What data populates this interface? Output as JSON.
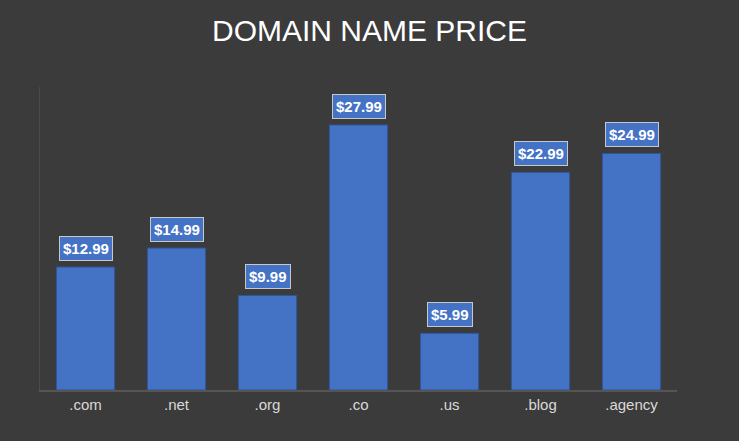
{
  "chart_data": {
    "type": "bar",
    "title": "DOMAIN NAME PRICE",
    "categories": [
      ".com",
      ".net",
      ".org",
      ".co",
      ".us",
      ".blog",
      ".agency"
    ],
    "values": [
      12.99,
      14.99,
      9.99,
      27.99,
      5.99,
      22.99,
      24.99
    ],
    "value_labels": [
      "$12.99",
      "$14.99",
      "$9.99",
      "$27.99",
      "$5.99",
      "$22.99",
      "$24.99"
    ],
    "color": "#4472c4",
    "ylim": [
      0,
      32
    ],
    "yticks": [],
    "grid": false,
    "data_labels": true,
    "tick_labels": "x"
  }
}
